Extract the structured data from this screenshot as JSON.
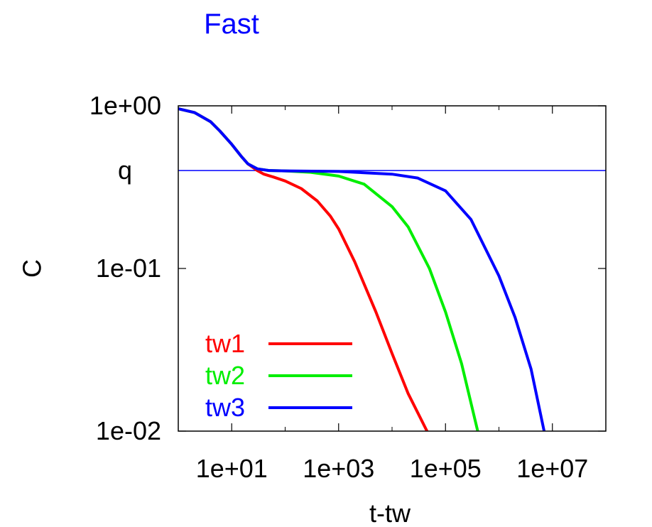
{
  "chart_data": {
    "type": "line",
    "title": "Fast",
    "title_color": "#0000ff",
    "xlabel": "t-tw",
    "ylabel": "C",
    "x_scale": "log",
    "y_scale": "log",
    "xlim": [
      1,
      100000000
    ],
    "ylim": [
      0.01,
      1
    ],
    "x_ticks": [
      {
        "value": 10,
        "label": "1e+01"
      },
      {
        "value": 1000,
        "label": "1e+03"
      },
      {
        "value": 100000,
        "label": "1e+05"
      },
      {
        "value": 10000000,
        "label": "1e+07"
      }
    ],
    "y_ticks": [
      {
        "value": 1,
        "label": "1e+00"
      },
      {
        "value": 0.1,
        "label": "1e-01"
      },
      {
        "value": 0.01,
        "label": "1e-02"
      }
    ],
    "reference_line": {
      "label": "q",
      "value": 0.4,
      "color": "#0000ff"
    },
    "grid": false,
    "legend_position": "bottom-left",
    "series": [
      {
        "name": "tw1",
        "color": "#ff0000",
        "x": [
          1,
          2,
          4,
          6,
          10,
          15,
          20,
          30,
          40,
          60,
          100,
          200,
          400,
          700,
          1000,
          2000,
          5000,
          10000,
          20000,
          45000
        ],
        "y": [
          0.96,
          0.91,
          0.8,
          0.7,
          0.58,
          0.49,
          0.44,
          0.4,
          0.38,
          0.365,
          0.345,
          0.31,
          0.26,
          0.21,
          0.175,
          0.11,
          0.054,
          0.03,
          0.017,
          0.01
        ]
      },
      {
        "name": "tw2",
        "color": "#00ee00",
        "x": [
          1,
          2,
          4,
          6,
          10,
          15,
          20,
          30,
          50,
          100,
          300,
          1000,
          3000,
          10000,
          20000,
          50000,
          100000,
          200000,
          400000
        ],
        "y": [
          0.96,
          0.91,
          0.8,
          0.7,
          0.58,
          0.49,
          0.44,
          0.41,
          0.4,
          0.398,
          0.39,
          0.37,
          0.33,
          0.24,
          0.18,
          0.1,
          0.054,
          0.026,
          0.01
        ]
      },
      {
        "name": "tw3",
        "color": "#0000ff",
        "x": [
          1,
          2,
          4,
          6,
          10,
          15,
          20,
          30,
          50,
          100,
          1000,
          10000,
          30000,
          100000,
          300000,
          1000000,
          2000000,
          4000000,
          7000000
        ],
        "y": [
          0.96,
          0.91,
          0.8,
          0.7,
          0.58,
          0.49,
          0.44,
          0.41,
          0.4,
          0.398,
          0.395,
          0.38,
          0.36,
          0.3,
          0.2,
          0.09,
          0.05,
          0.024,
          0.01
        ]
      }
    ]
  }
}
